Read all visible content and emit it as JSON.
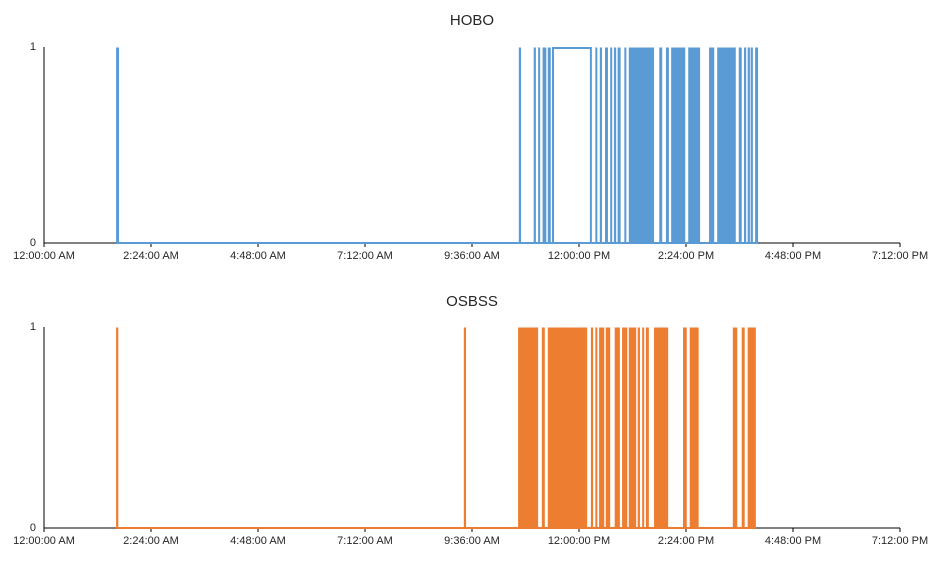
{
  "chart_data": {
    "type": "line",
    "subtype": "binary-step-waveform",
    "description": "Two stacked 0/1 event time-series line charts (HOBO vs OSBSS loggers) over one day",
    "axis_color": "#000000",
    "text_color": "#262626",
    "grid": "off",
    "legend": "none",
    "time_unit": "minutes_since_midnight",
    "x_axis": {
      "start_minutes": 0,
      "end_minutes": 1152,
      "tick_interval_minutes": 144,
      "tick_labels": [
        "12:00:00 AM",
        "2:24:00 AM",
        "4:48:00 AM",
        "7:12:00 AM",
        "9:36:00 AM",
        "12:00:00 PM",
        "2:24:00 PM",
        "4:48:00 PM",
        "7:12:00 PM"
      ]
    },
    "y_axis": {
      "min": 0,
      "max": 1,
      "tick_labels": [
        "0",
        "1"
      ]
    },
    "charts": [
      {
        "title": "HOBO",
        "color": "#5B9BD5",
        "y_max_label": "1",
        "y_min_label": "0",
        "series_range_minutes": [
          97,
          961
        ],
        "segments_on": [
          {
            "start": 97,
            "end": 101,
            "kind": "block"
          },
          {
            "start": 639,
            "end": 642,
            "kind": "block"
          },
          {
            "start": 659,
            "end": 662,
            "kind": "block"
          },
          {
            "start": 665,
            "end": 667,
            "kind": "block"
          },
          {
            "start": 671,
            "end": 676,
            "kind": "block"
          },
          {
            "start": 678,
            "end": 682,
            "kind": "block"
          },
          {
            "start": 685,
            "end": 736,
            "kind": "plateau"
          },
          {
            "start": 742,
            "end": 744,
            "kind": "block"
          },
          {
            "start": 748,
            "end": 751,
            "kind": "block"
          },
          {
            "start": 755,
            "end": 759,
            "kind": "block"
          },
          {
            "start": 762,
            "end": 764,
            "kind": "block"
          },
          {
            "start": 767,
            "end": 770,
            "kind": "block"
          },
          {
            "start": 772,
            "end": 776,
            "kind": "block"
          },
          {
            "start": 781,
            "end": 783,
            "kind": "block"
          },
          {
            "start": 787,
            "end": 821,
            "kind": "block"
          },
          {
            "start": 828,
            "end": 832,
            "kind": "block"
          },
          {
            "start": 837,
            "end": 841,
            "kind": "block"
          },
          {
            "start": 844,
            "end": 863,
            "kind": "block"
          },
          {
            "start": 867,
            "end": 883,
            "kind": "block"
          },
          {
            "start": 895,
            "end": 902,
            "kind": "block"
          },
          {
            "start": 906,
            "end": 931,
            "kind": "block"
          },
          {
            "start": 935,
            "end": 939,
            "kind": "block"
          },
          {
            "start": 942,
            "end": 945,
            "kind": "block"
          },
          {
            "start": 947,
            "end": 950,
            "kind": "block"
          },
          {
            "start": 951,
            "end": 954,
            "kind": "block"
          },
          {
            "start": 957,
            "end": 961,
            "kind": "block"
          }
        ]
      },
      {
        "title": "OSBSS",
        "color": "#ED7D31",
        "y_max_label": "1",
        "y_min_label": "0",
        "series_range_minutes": [
          97,
          958
        ],
        "segments_on": [
          {
            "start": 97,
            "end": 100,
            "kind": "block"
          },
          {
            "start": 565,
            "end": 568,
            "kind": "block"
          },
          {
            "start": 638,
            "end": 665,
            "kind": "block"
          },
          {
            "start": 670,
            "end": 674,
            "kind": "block"
          },
          {
            "start": 678,
            "end": 731,
            "kind": "block"
          },
          {
            "start": 736,
            "end": 739,
            "kind": "block"
          },
          {
            "start": 742,
            "end": 744,
            "kind": "block"
          },
          {
            "start": 747,
            "end": 754,
            "kind": "block"
          },
          {
            "start": 756,
            "end": 762,
            "kind": "block"
          },
          {
            "start": 768,
            "end": 775,
            "kind": "block"
          },
          {
            "start": 778,
            "end": 785,
            "kind": "block"
          },
          {
            "start": 787,
            "end": 797,
            "kind": "block"
          },
          {
            "start": 799,
            "end": 802,
            "kind": "block"
          },
          {
            "start": 805,
            "end": 807,
            "kind": "block"
          },
          {
            "start": 810,
            "end": 814,
            "kind": "block"
          },
          {
            "start": 821,
            "end": 840,
            "kind": "block"
          },
          {
            "start": 860,
            "end": 865,
            "kind": "block"
          },
          {
            "start": 869,
            "end": 881,
            "kind": "block"
          },
          {
            "start": 927,
            "end": 933,
            "kind": "block"
          },
          {
            "start": 939,
            "end": 943,
            "kind": "block"
          },
          {
            "start": 947,
            "end": 958,
            "kind": "block"
          }
        ]
      }
    ]
  }
}
